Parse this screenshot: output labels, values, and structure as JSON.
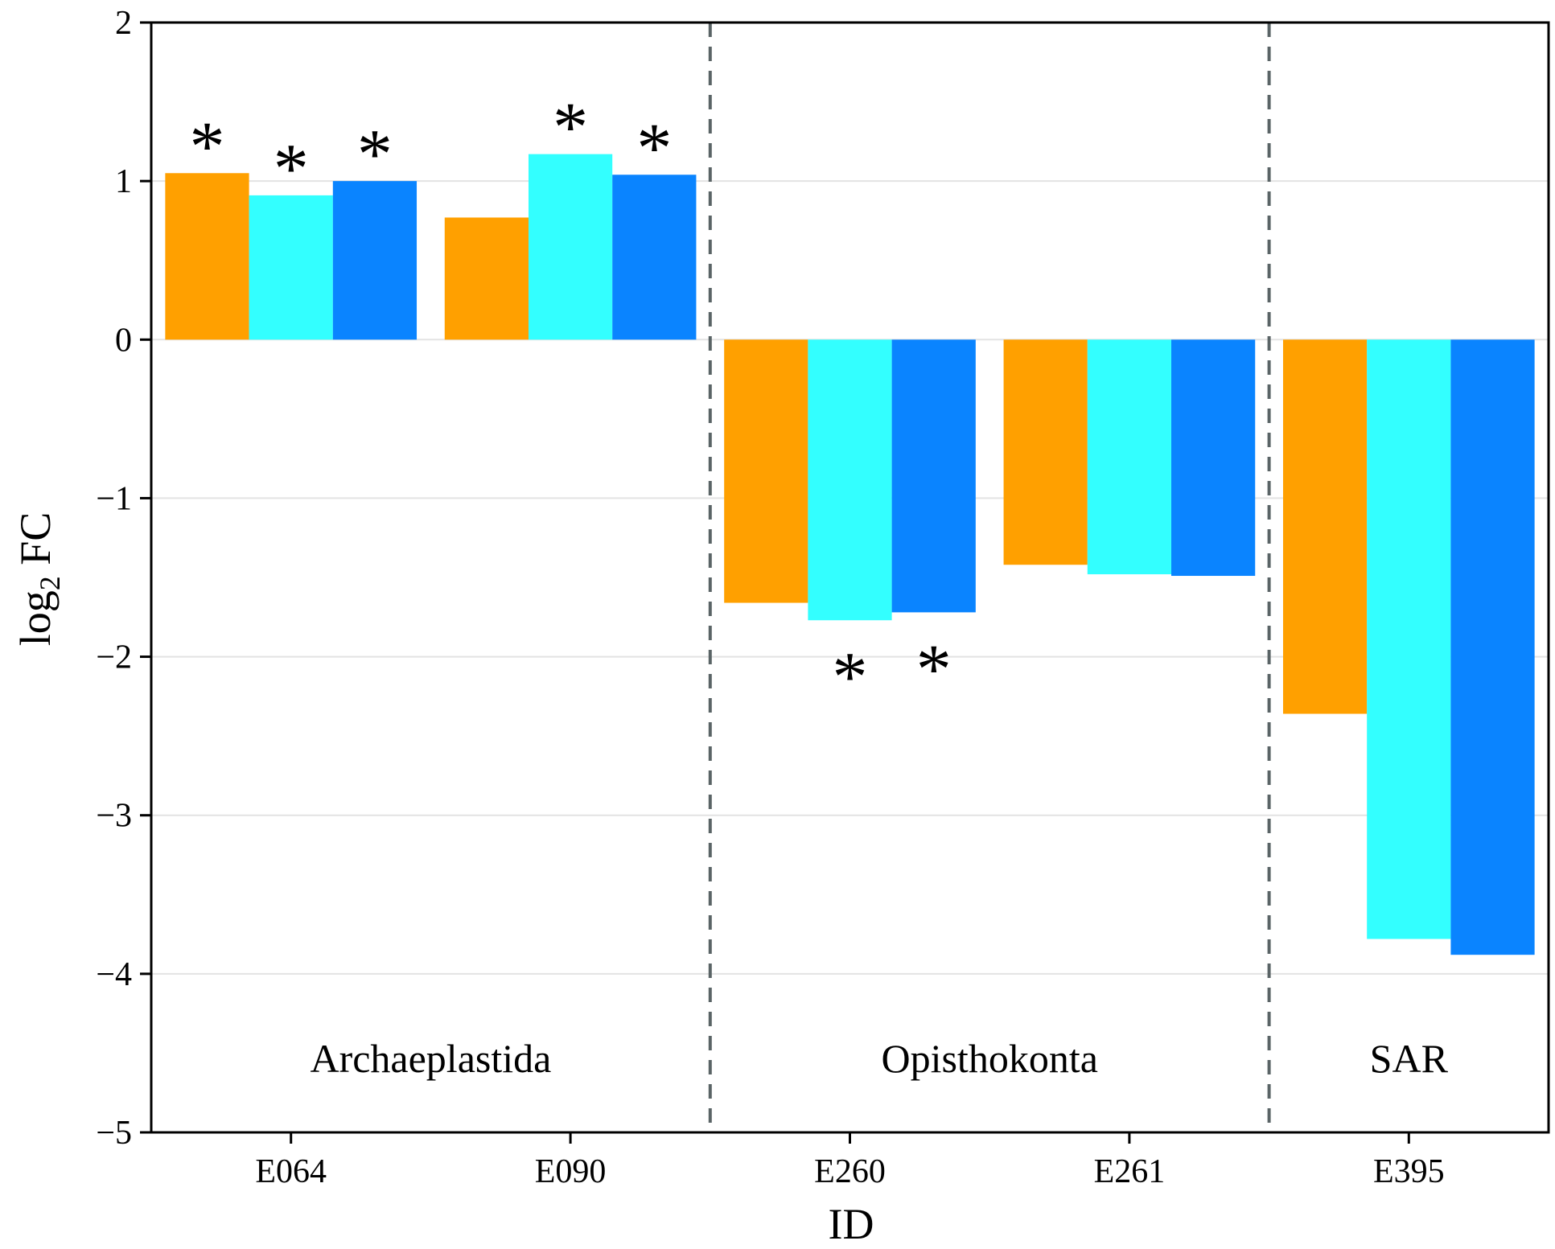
{
  "chart_data": {
    "type": "bar",
    "title": "",
    "xlabel": "ID",
    "ylabel_main": "log",
    "ylabel_sub": "2",
    "ylabel_rest": " FC",
    "ylim": [
      -5,
      2
    ],
    "yticks": [
      2,
      1,
      0,
      -1,
      -2,
      -3,
      -4,
      -5
    ],
    "ytick_labels": [
      "2",
      "1",
      "0",
      "−1",
      "−2",
      "−3",
      "−4",
      "−5"
    ],
    "grid": "horizontal",
    "categories": [
      "E064",
      "E090",
      "E260",
      "E261",
      "E395"
    ],
    "series": [
      {
        "name": "series-1",
        "color": "#FFA000",
        "values": [
          1.05,
          0.77,
          -1.66,
          -1.42,
          -2.36
        ]
      },
      {
        "name": "series-2",
        "color": "#33FFFF",
        "values": [
          0.91,
          1.17,
          -1.77,
          -1.48,
          -3.78
        ]
      },
      {
        "name": "series-3",
        "color": "#0A84FF",
        "values": [
          1.0,
          1.04,
          -1.72,
          -1.49,
          -3.88
        ]
      }
    ],
    "significance": [
      {
        "category": "E064",
        "series": 0,
        "label": "*"
      },
      {
        "category": "E064",
        "series": 1,
        "label": "*"
      },
      {
        "category": "E064",
        "series": 2,
        "label": "*"
      },
      {
        "category": "E090",
        "series": 1,
        "label": "*"
      },
      {
        "category": "E090",
        "series": 2,
        "label": "*"
      },
      {
        "category": "E260",
        "series": 1,
        "label": "*"
      },
      {
        "category": "E260",
        "series": 2,
        "label": "*"
      }
    ],
    "groups": [
      {
        "label": "Archaeplastida",
        "categories": [
          "E064",
          "E090"
        ]
      },
      {
        "label": "Opisthokonta",
        "categories": [
          "E260",
          "E261"
        ]
      },
      {
        "label": "SAR",
        "categories": [
          "E395"
        ]
      }
    ],
    "separator_color": "#5a6466"
  }
}
